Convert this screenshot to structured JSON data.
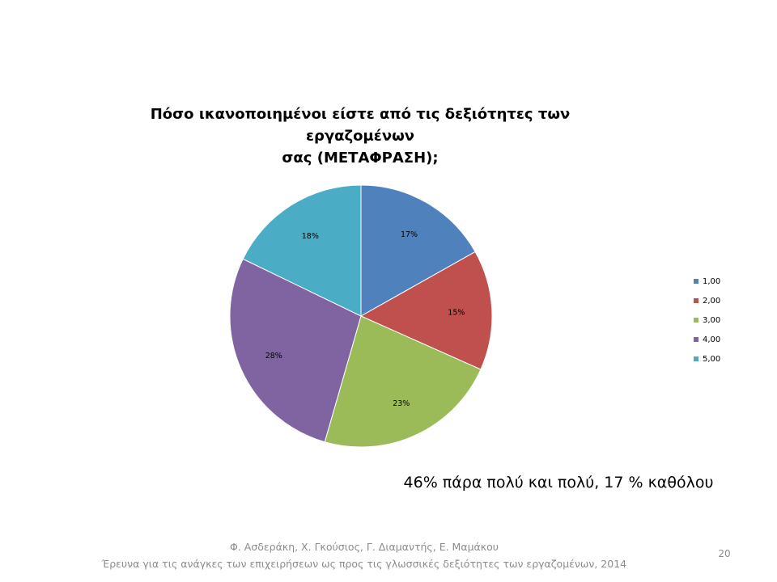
{
  "slide": {
    "title_line1": "Πόσο ικανοποιημένοι είστε από τις δεξιότητες των εργαζομένων",
    "title_line2": "σας (ΜΕΤΑΦΡΑΣΗ);",
    "summary": "46% πάρα πολύ και πολύ, 17 % καθόλου",
    "footer_line1": "Φ. Ασδεράκη, Χ. Γκούσιος, Γ. Διαμαντής, Ε. Μαμάκου",
    "footer_line2": "Έρευνα για τις ανάγκες των επιχειρήσεων ως προς τις γλωσσικές δεξιότητες των εργαζομένων, 2014",
    "page_number": "20"
  },
  "chart_data": {
    "type": "pie",
    "title": "Πόσο ικανοποιημένοι είστε από τις δεξιότητες των εργαζομένων σας (ΜΕΤΑΦΡΑΣΗ);",
    "categories": [
      "1,00",
      "2,00",
      "3,00",
      "4,00",
      "5,00"
    ],
    "values": [
      17,
      15,
      23,
      28,
      18
    ],
    "labels": [
      "17%",
      "15%",
      "23%",
      "28%",
      "18%"
    ],
    "colors": [
      "#4f81bd",
      "#c0504d",
      "#9bbb59",
      "#8064a2",
      "#4bacc6"
    ],
    "legend_position": "right"
  }
}
